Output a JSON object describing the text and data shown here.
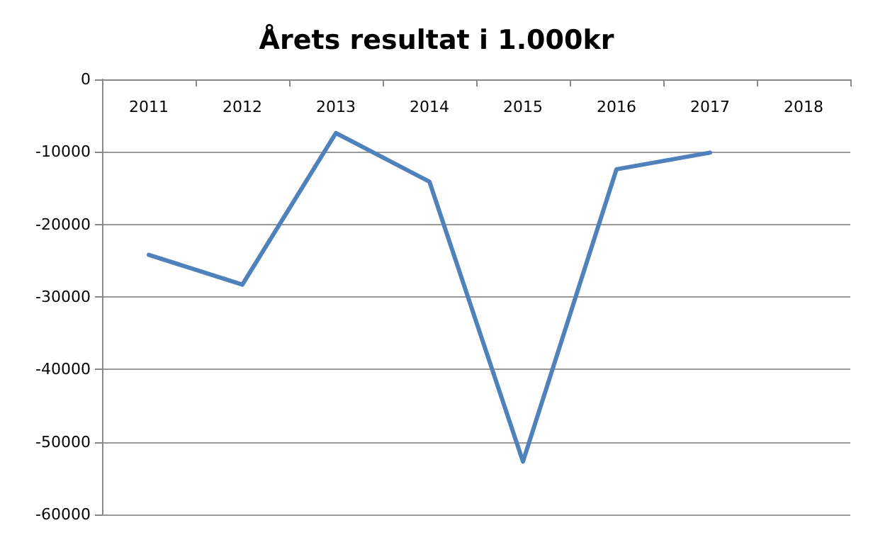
{
  "chart_data": {
    "type": "line",
    "title": "Årets resultat i 1.000kr",
    "categories": [
      "2011",
      "2012",
      "2013",
      "2014",
      "2015",
      "2016",
      "2017",
      "2018"
    ],
    "series": [
      {
        "color": "#4f81bd",
        "values": [
          -24200,
          -28300,
          -7400,
          -14100,
          -52700,
          -12400,
          -10100,
          null
        ]
      }
    ],
    "ylim": [
      -60000,
      0
    ],
    "yticks": [
      -60000,
      -50000,
      -40000,
      -30000,
      -20000,
      -10000,
      0
    ],
    "grid": "y",
    "marker": "none",
    "line_style": "solid"
  }
}
